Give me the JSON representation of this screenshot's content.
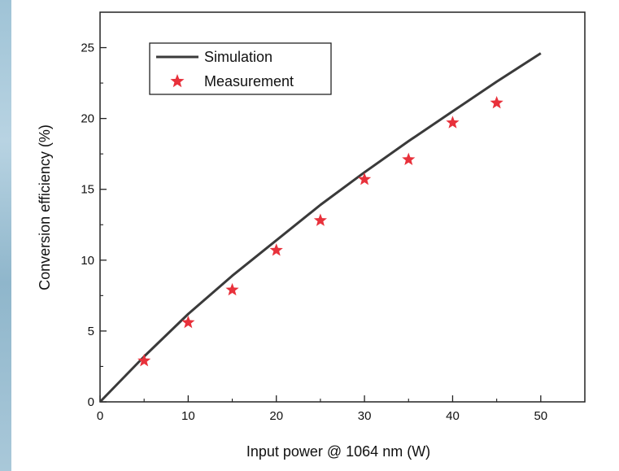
{
  "chart_data": {
    "type": "line",
    "xlabel": "Input power @ 1064 nm (W)",
    "ylabel": "Conversion efficiency (%)",
    "xlim": [
      0,
      55
    ],
    "ylim": [
      0,
      27.5
    ],
    "xticks": [
      0,
      10,
      20,
      30,
      40,
      50
    ],
    "yticks": [
      0,
      5,
      10,
      15,
      20,
      25
    ],
    "grid": false,
    "legend_position": "top-left",
    "series": [
      {
        "name": "Simulation",
        "kind": "line",
        "color": "#3a3a3a",
        "x": [
          0,
          5,
          10,
          15,
          20,
          25,
          30,
          35,
          40,
          45,
          50
        ],
        "y": [
          0,
          3.2,
          6.2,
          8.9,
          11.4,
          13.9,
          16.2,
          18.4,
          20.5,
          22.6,
          24.6
        ]
      },
      {
        "name": "Measurement",
        "kind": "scatter",
        "marker": "star",
        "color": "#e8313b",
        "x": [
          5,
          10,
          15,
          20,
          25,
          30,
          35,
          40,
          45
        ],
        "y": [
          2.9,
          5.6,
          7.9,
          10.7,
          12.8,
          15.7,
          17.1,
          19.7,
          21.1
        ]
      }
    ]
  }
}
